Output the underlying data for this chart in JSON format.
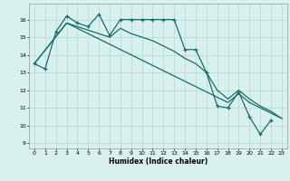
{
  "xlabel": "Humidex (Indice chaleur)",
  "bg_color": "#d8f0ee",
  "grid_color": "#b8dcd8",
  "line_color": "#1a6b6b",
  "xlim": [
    -0.5,
    23.5
  ],
  "ylim": [
    8.7,
    16.9
  ],
  "yticks": [
    9,
    10,
    11,
    12,
    13,
    14,
    15,
    16
  ],
  "xticks": [
    0,
    1,
    2,
    3,
    4,
    5,
    6,
    7,
    8,
    9,
    10,
    11,
    12,
    13,
    14,
    15,
    16,
    17,
    18,
    19,
    20,
    21,
    22,
    23
  ],
  "series": [
    {
      "x": [
        0,
        1,
        2,
        3,
        4,
        5,
        6,
        7,
        8,
        9,
        10,
        11,
        12,
        13,
        14,
        15,
        16,
        17,
        18,
        19,
        20,
        21,
        22
      ],
      "y": [
        13.5,
        13.2,
        15.3,
        16.2,
        15.8,
        15.6,
        16.3,
        15.1,
        16.0,
        16.0,
        16.0,
        16.0,
        16.0,
        16.0,
        14.3,
        14.3,
        13.0,
        11.1,
        11.0,
        11.9,
        10.5,
        9.5,
        10.3
      ]
    },
    {
      "x": [
        0,
        3,
        4,
        5,
        6,
        7,
        8,
        9,
        10,
        11,
        12,
        13,
        14,
        15,
        16,
        17,
        18,
        19,
        20,
        21,
        22,
        23
      ],
      "y": [
        13.5,
        15.8,
        15.6,
        15.4,
        15.2,
        15.0,
        15.5,
        15.2,
        15.0,
        14.8,
        14.5,
        14.2,
        13.8,
        13.5,
        13.0,
        12.0,
        11.5,
        12.0,
        11.5,
        11.1,
        10.8,
        10.4
      ]
    },
    {
      "x": [
        0,
        3,
        4,
        5,
        6,
        7,
        8,
        9,
        10,
        11,
        12,
        13,
        14,
        15,
        16,
        17,
        18,
        19,
        20,
        21,
        22,
        23
      ],
      "y": [
        13.5,
        15.8,
        15.5,
        15.2,
        14.9,
        14.6,
        14.3,
        14.0,
        13.7,
        13.4,
        13.1,
        12.8,
        12.5,
        12.2,
        11.9,
        11.6,
        11.3,
        11.8,
        11.3,
        11.0,
        10.7,
        10.4
      ]
    }
  ]
}
